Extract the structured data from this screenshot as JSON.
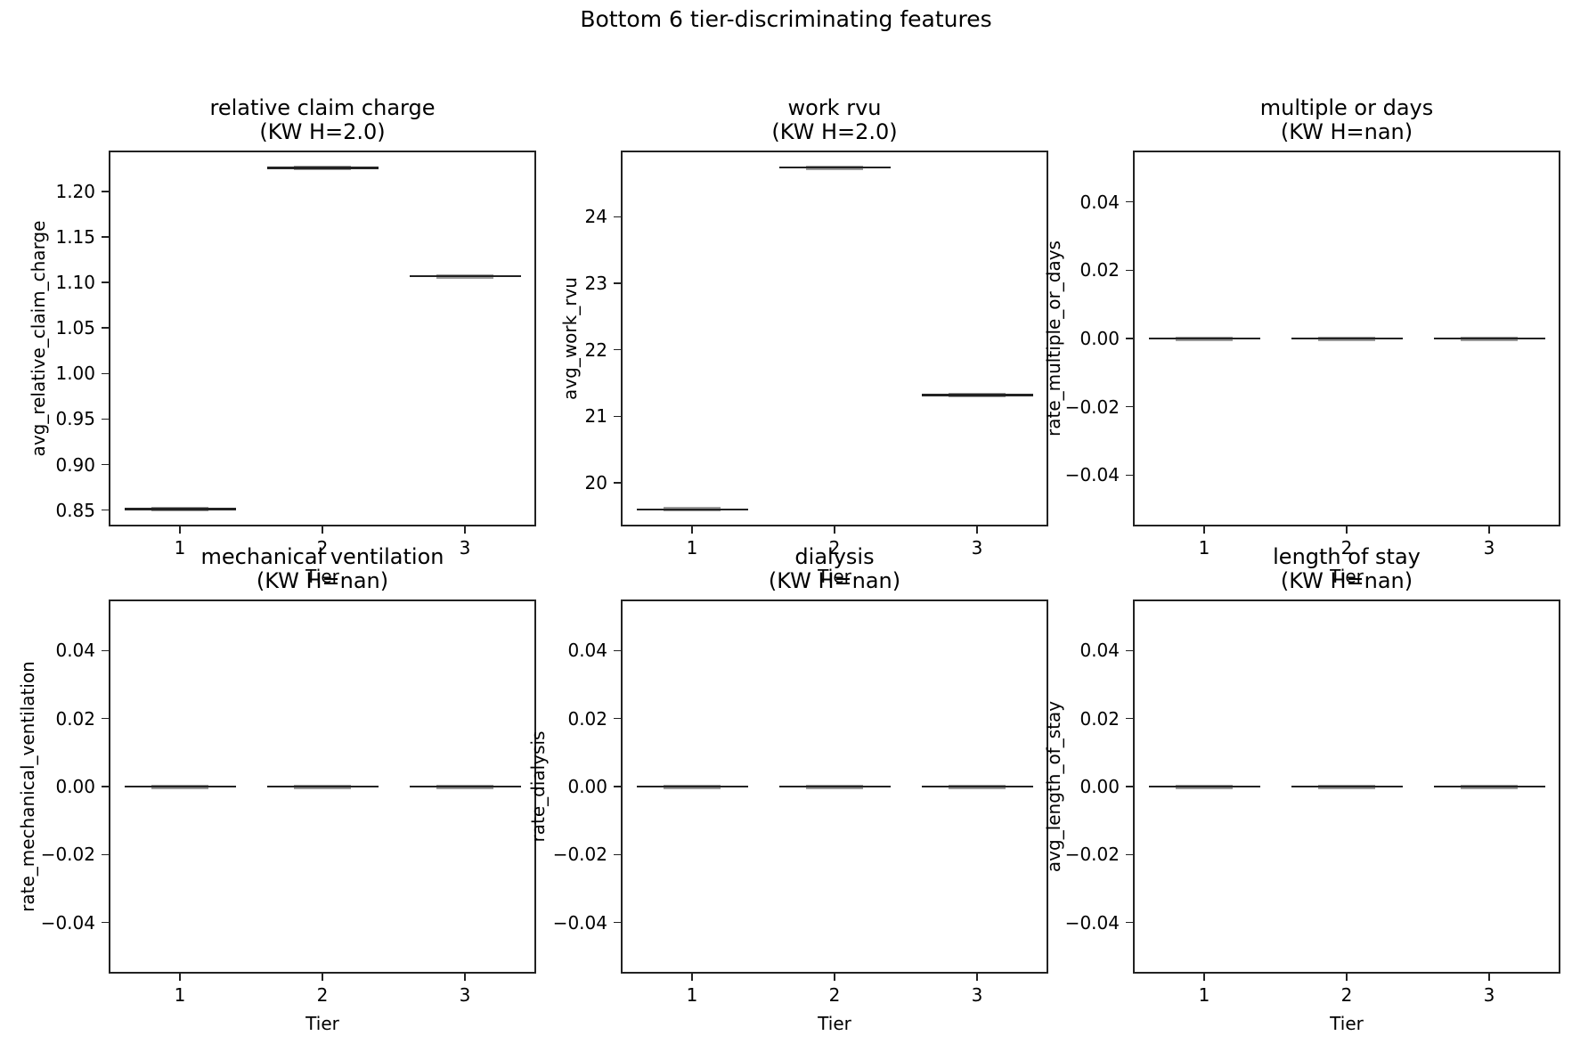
{
  "figure": {
    "title": "Bottom 6 tier-discriminating features",
    "background": "#ffffff",
    "box_color": "#222222",
    "median_color": "#9a9a9a",
    "text_color": "#000000"
  },
  "chart_data": [
    {
      "type": "boxplot",
      "title": "relative claim charge",
      "subtitle": "(KW H=2.0)",
      "xlabel": "Tier",
      "ylabel": "avg_relative_claim_charge",
      "categories": [
        1,
        2,
        3
      ],
      "values": [
        0.851,
        1.226,
        1.107
      ],
      "ylim": [
        0.832,
        1.245
      ],
      "xlim": [
        0.5,
        3.5
      ],
      "yticks": [
        {
          "label": "0.85",
          "v": 0.85
        },
        {
          "label": "0.90",
          "v": 0.9
        },
        {
          "label": "0.95",
          "v": 0.95
        },
        {
          "label": "1.00",
          "v": 1.0
        },
        {
          "label": "1.05",
          "v": 1.05
        },
        {
          "label": "1.10",
          "v": 1.1
        },
        {
          "label": "1.15",
          "v": 1.15
        },
        {
          "label": "1.20",
          "v": 1.2
        }
      ],
      "xticks": [
        {
          "label": "1",
          "v": 1
        },
        {
          "label": "2",
          "v": 2
        },
        {
          "label": "3",
          "v": 3
        }
      ]
    },
    {
      "type": "boxplot",
      "title": "work rvu",
      "subtitle": "(KW H=2.0)",
      "xlabel": "Tier",
      "ylabel": "avg_work_rvu",
      "categories": [
        1,
        2,
        3
      ],
      "values": [
        19.6,
        24.74,
        21.32
      ],
      "ylim": [
        19.343,
        24.997
      ],
      "xlim": [
        0.5,
        3.5
      ],
      "yticks": [
        {
          "label": "20",
          "v": 20
        },
        {
          "label": "21",
          "v": 21
        },
        {
          "label": "22",
          "v": 22
        },
        {
          "label": "23",
          "v": 23
        },
        {
          "label": "24",
          "v": 24
        }
      ],
      "xticks": [
        {
          "label": "1",
          "v": 1
        },
        {
          "label": "2",
          "v": 2
        },
        {
          "label": "3",
          "v": 3
        }
      ]
    },
    {
      "type": "boxplot",
      "title": "multiple or days",
      "subtitle": "(KW H=nan)",
      "xlabel": "Tier",
      "ylabel": "rate_multiple_or_days",
      "categories": [
        1,
        2,
        3
      ],
      "values": [
        0.0,
        0.0,
        0.0
      ],
      "ylim": [
        -0.055,
        0.055
      ],
      "xlim": [
        0.5,
        3.5
      ],
      "yticks": [
        {
          "label": "0.04",
          "v": 0.04
        },
        {
          "label": "0.02",
          "v": 0.02
        },
        {
          "label": "0.00",
          "v": 0.0
        },
        {
          "label": "−0.02",
          "v": -0.02
        },
        {
          "label": "−0.04",
          "v": -0.04
        }
      ],
      "xticks": [
        {
          "label": "1",
          "v": 1
        },
        {
          "label": "2",
          "v": 2
        },
        {
          "label": "3",
          "v": 3
        }
      ]
    },
    {
      "type": "boxplot",
      "title": "mechanical ventilation",
      "subtitle": "(KW H=nan)",
      "xlabel": "Tier",
      "ylabel": "rate_mechanical_ventilation",
      "categories": [
        1,
        2,
        3
      ],
      "values": [
        0.0,
        0.0,
        0.0
      ],
      "ylim": [
        -0.055,
        0.055
      ],
      "xlim": [
        0.5,
        3.5
      ],
      "yticks": [
        {
          "label": "0.04",
          "v": 0.04
        },
        {
          "label": "0.02",
          "v": 0.02
        },
        {
          "label": "0.00",
          "v": 0.0
        },
        {
          "label": "−0.02",
          "v": -0.02
        },
        {
          "label": "−0.04",
          "v": -0.04
        }
      ],
      "xticks": [
        {
          "label": "1",
          "v": 1
        },
        {
          "label": "2",
          "v": 2
        },
        {
          "label": "3",
          "v": 3
        }
      ]
    },
    {
      "type": "boxplot",
      "title": "dialysis",
      "subtitle": "(KW H=nan)",
      "xlabel": "Tier",
      "ylabel": "rate_dialysis",
      "categories": [
        1,
        2,
        3
      ],
      "values": [
        0.0,
        0.0,
        0.0
      ],
      "ylim": [
        -0.055,
        0.055
      ],
      "xlim": [
        0.5,
        3.5
      ],
      "yticks": [
        {
          "label": "0.04",
          "v": 0.04
        },
        {
          "label": "0.02",
          "v": 0.02
        },
        {
          "label": "0.00",
          "v": 0.0
        },
        {
          "label": "−0.02",
          "v": -0.02
        },
        {
          "label": "−0.04",
          "v": -0.04
        }
      ],
      "xticks": [
        {
          "label": "1",
          "v": 1
        },
        {
          "label": "2",
          "v": 2
        },
        {
          "label": "3",
          "v": 3
        }
      ]
    },
    {
      "type": "boxplot",
      "title": "length of stay",
      "subtitle": "(KW H=nan)",
      "xlabel": "Tier",
      "ylabel": "avg_length_of_stay",
      "categories": [
        1,
        2,
        3
      ],
      "values": [
        0.0,
        0.0,
        0.0
      ],
      "ylim": [
        -0.055,
        0.055
      ],
      "xlim": [
        0.5,
        3.5
      ],
      "yticks": [
        {
          "label": "0.04",
          "v": 0.04
        },
        {
          "label": "0.02",
          "v": 0.02
        },
        {
          "label": "0.00",
          "v": 0.0
        },
        {
          "label": "−0.02",
          "v": -0.02
        },
        {
          "label": "−0.04",
          "v": -0.04
        }
      ],
      "xticks": [
        {
          "label": "1",
          "v": 1
        },
        {
          "label": "2",
          "v": 2
        },
        {
          "label": "3",
          "v": 3
        }
      ]
    }
  ]
}
